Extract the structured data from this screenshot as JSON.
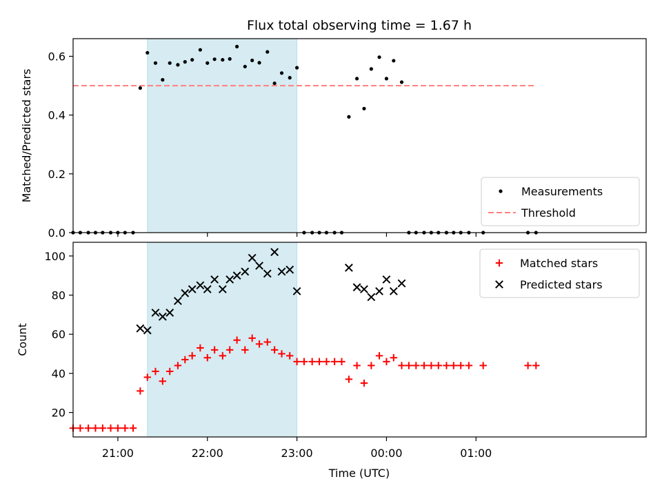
{
  "chart_data": {
    "type": "scatter",
    "title": "Flux total observing time = 1.67 h",
    "xlabel": "Time (UTC)",
    "x_unit": "hours since 20:00 UTC",
    "xlim": [
      20.5,
      26.9
    ],
    "xticks": [
      {
        "value": 21,
        "label": "21:00"
      },
      {
        "value": 22,
        "label": "22:00"
      },
      {
        "value": 23,
        "label": "23:00"
      },
      {
        "value": 24,
        "label": "00:00"
      },
      {
        "value": 25,
        "label": "01:00"
      }
    ],
    "highlight_span": {
      "x_start": 21.33,
      "x_end": 23.0,
      "color": "#add8e6"
    },
    "x": [
      20.5,
      20.58,
      20.67,
      20.75,
      20.83,
      20.92,
      21.0,
      21.08,
      21.17,
      21.25,
      21.33,
      21.42,
      21.5,
      21.58,
      21.67,
      21.75,
      21.83,
      21.92,
      22.0,
      22.08,
      22.17,
      22.25,
      22.33,
      22.42,
      22.5,
      22.58,
      22.67,
      22.75,
      22.83,
      22.92,
      23.0,
      23.08,
      23.17,
      23.25,
      23.33,
      23.42,
      23.5,
      23.58,
      23.67,
      23.75,
      23.83,
      23.92,
      24.0,
      24.08,
      24.17,
      24.25,
      24.33,
      24.42,
      24.5,
      24.58,
      24.67,
      24.75,
      24.83,
      24.92,
      25.08,
      25.58,
      25.67
    ],
    "panels": [
      {
        "name": "ratio",
        "ylabel": "Matched/Predicted stars",
        "ylim": [
          0,
          0.66
        ],
        "yticks": [
          0.0,
          0.2,
          0.4,
          0.6
        ],
        "ytick_labels": [
          "0.0",
          "0.2",
          "0.4",
          "0.6"
        ],
        "legend_position": "lower-right",
        "series": [
          {
            "name": "Measurements",
            "marker": "dot",
            "color": "#000000",
            "values": [
              0,
              0,
              0,
              0,
              0,
              0,
              0,
              0,
              0,
              0.492,
              0.612,
              0.577,
              0.52,
              0.577,
              0.571,
              0.581,
              0.588,
              0.622,
              0.577,
              0.59,
              0.588,
              0.591,
              0.633,
              0.565,
              0.586,
              0.578,
              0.615,
              0.508,
              0.543,
              0.527,
              0.561,
              0,
              0,
              0,
              0,
              0,
              0,
              0.394,
              0.524,
              0.422,
              0.557,
              0.597,
              0.524,
              0.585,
              0.512,
              0,
              0,
              0,
              0,
              0,
              0,
              0,
              0,
              0,
              0,
              0,
              0
            ]
          },
          {
            "name": "Threshold",
            "style": "dashed-line",
            "color": "#ff7f7f",
            "x": [
              20.5,
              25.67
            ],
            "values": [
              0.5,
              0.5
            ]
          }
        ]
      },
      {
        "name": "counts",
        "ylabel": "Count",
        "ylim": [
          7.5,
          107
        ],
        "yticks": [
          20,
          40,
          60,
          80,
          100
        ],
        "ytick_labels": [
          "20",
          "40",
          "60",
          "80",
          "100"
        ],
        "legend_position": "upper-right",
        "series": [
          {
            "name": "Matched stars",
            "marker": "plus",
            "color": "#ff0000",
            "values": [
              12,
              12,
              12,
              12,
              12,
              12,
              12,
              12,
              12,
              31,
              38,
              41,
              36,
              41,
              44,
              47,
              49,
              53,
              48,
              52,
              49,
              52,
              57,
              52,
              58,
              55,
              56,
              52,
              50,
              49,
              46,
              46,
              46,
              46,
              46,
              46,
              46,
              37,
              44,
              35,
              44,
              49,
              46,
              48,
              44,
              44,
              44,
              44,
              44,
              44,
              44,
              44,
              44,
              44,
              44,
              44,
              44
            ]
          },
          {
            "name": "Predicted stars",
            "marker": "x",
            "color": "#000000",
            "x": [
              21.25,
              21.33,
              21.42,
              21.5,
              21.58,
              21.67,
              21.75,
              21.83,
              21.92,
              22.0,
              22.08,
              22.17,
              22.25,
              22.33,
              22.42,
              22.5,
              22.58,
              22.67,
              22.75,
              22.83,
              22.92,
              23.0,
              23.58,
              23.67,
              23.75,
              23.83,
              23.92,
              24.0,
              24.08,
              24.17
            ],
            "values": [
              63,
              62,
              71,
              69,
              71,
              77,
              81,
              83,
              85,
              83,
              88,
              83,
              88,
              90,
              92,
              99,
              95,
              91,
              102,
              92,
              93,
              82,
              94,
              84,
              83,
              79,
              82,
              88,
              82,
              86
            ]
          }
        ]
      }
    ]
  }
}
